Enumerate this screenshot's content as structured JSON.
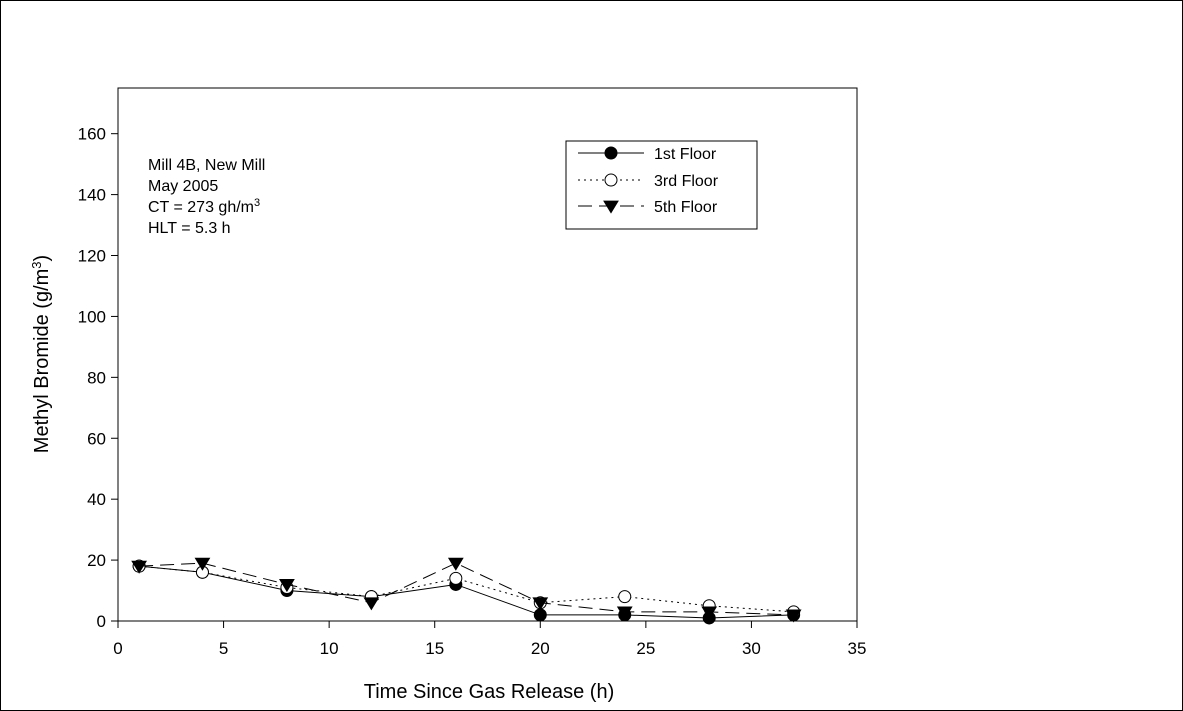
{
  "chart_data": {
    "type": "line",
    "xlabel": "Time Since Gas Release (h)",
    "ylabel_main": "Methyl Bromide (g/m",
    "ylabel_sup": "3",
    "ylabel_tail": ")",
    "xlim": [
      0,
      35
    ],
    "ylim": [
      0,
      175
    ],
    "x_ticks": [
      0,
      5,
      10,
      15,
      20,
      25,
      30,
      35
    ],
    "y_ticks": [
      0,
      20,
      40,
      60,
      80,
      100,
      120,
      140,
      160
    ],
    "grid": false,
    "legend_position": "top-right",
    "annotation": {
      "line1": "Mill 4B, New Mill",
      "line2": "May 2005",
      "line3_main": "CT = 273 gh/m",
      "line3_sup": "3",
      "line4": "HLT =  5.3 h"
    },
    "series": [
      {
        "name": "1st Floor",
        "marker": "filled-circle",
        "line": "solid",
        "x": [
          1,
          4,
          8,
          12,
          16,
          20,
          24,
          28,
          32
        ],
        "y": [
          18,
          16,
          10,
          8,
          12,
          2,
          2,
          1,
          2
        ]
      },
      {
        "name": "3rd Floor",
        "marker": "open-circle",
        "line": "dotted",
        "x": [
          1,
          4,
          8,
          12,
          16,
          20,
          24,
          28,
          32
        ],
        "y": [
          18,
          16,
          11,
          8,
          14,
          6,
          8,
          5,
          3
        ]
      },
      {
        "name": "5th Floor",
        "marker": "filled-triangle-down",
        "line": "dashed",
        "x": [
          1,
          4,
          8,
          12,
          16,
          20,
          24,
          28,
          32
        ],
        "y": [
          18,
          19,
          12,
          6,
          19,
          6,
          3,
          3,
          2
        ]
      }
    ]
  }
}
